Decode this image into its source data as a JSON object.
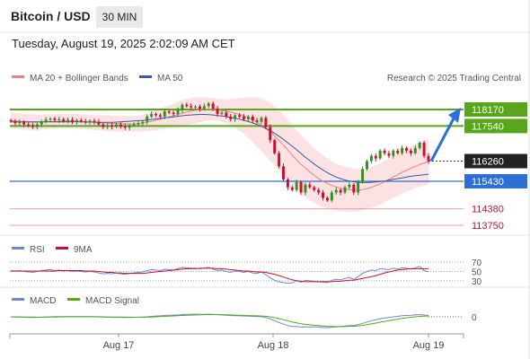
{
  "header": {
    "title": "Bitcoin / USD",
    "timeframe": "30 MIN",
    "datetime": "Tuesday, August 19, 2025 2:02:09 AM CET"
  },
  "legend": {
    "ma20": "MA 20 + Bollinger Bands",
    "ma50": "MA 50",
    "credit": "Research © 2025 Trading Central"
  },
  "colors": {
    "bull": "#2f8f1f",
    "bear": "#c8102e",
    "ma20": "#f08080",
    "ma50": "#3d5a99",
    "band": "#fbd3d3",
    "resistance": "#58a61c",
    "support": "#2d6fd6",
    "rsi": "#6f86d6",
    "macd": "#6f86d6",
    "signal": "#58a61c"
  },
  "chart_data": [
    {
      "type": "candlestick",
      "title": "",
      "ylim": [
        113300,
        118750
      ],
      "xticks": [
        "Aug 17",
        "Aug 18",
        "Aug 19"
      ],
      "current_price": "116260",
      "levels": [
        {
          "value": 118170,
          "label": "118170",
          "kind": "resistance"
        },
        {
          "value": 117540,
          "label": "117540",
          "kind": "resistance"
        },
        {
          "value": 115430,
          "label": "115430",
          "kind": "support"
        },
        {
          "value": 114380,
          "label": "114380",
          "kind": "minor"
        },
        {
          "value": 113750,
          "label": "113750",
          "kind": "minor"
        }
      ],
      "closes": [
        117720,
        117650,
        117700,
        117600,
        117550,
        117500,
        117600,
        117700,
        117780,
        117820,
        117760,
        117800,
        117720,
        117780,
        117700,
        117760,
        117720,
        117680,
        117740,
        117700,
        117600,
        117500,
        117560,
        117520,
        117600,
        117520,
        117480,
        117560,
        117600,
        117650,
        117700,
        117900,
        118000,
        117950,
        117900,
        118100,
        118050,
        118000,
        118150,
        118350,
        118300,
        118250,
        118280,
        118200,
        118300,
        118400,
        118200,
        118000,
        118050,
        117900,
        117800,
        117950,
        117900,
        117800,
        117900,
        117750,
        117700,
        117850,
        117500,
        117000,
        116500,
        116000,
        115500,
        115200,
        115100,
        115400,
        115000,
        115300,
        115200,
        115100,
        115000,
        114800,
        114700,
        115000,
        115100,
        115000,
        115200,
        115300,
        115000,
        115400,
        115900,
        116200,
        116400,
        116300,
        116600,
        116500,
        116400,
        116600,
        116500,
        116700,
        116600,
        116500,
        116700,
        116900,
        116400,
        116200
      ],
      "ma20": [
        117750,
        117740,
        117720,
        117700,
        117690,
        117680,
        117680,
        117690,
        117700,
        117710,
        117710,
        117720,
        117720,
        117720,
        117720,
        117720,
        117710,
        117700,
        117690,
        117680,
        117670,
        117660,
        117650,
        117640,
        117640,
        117630,
        117630,
        117620,
        117620,
        117630,
        117650,
        117680,
        117720,
        117760,
        117800,
        117850,
        117890,
        117930,
        117980,
        118030,
        118070,
        118110,
        118140,
        118160,
        118180,
        118190,
        118180,
        118160,
        118130,
        118100,
        118070,
        118030,
        117980,
        117930,
        117860,
        117780,
        117690,
        117580,
        117460,
        117320,
        117160,
        116990,
        116810,
        116620,
        116430,
        116250,
        116080,
        115930,
        115790,
        115660,
        115540,
        115430,
        115350,
        115270,
        115210,
        115160,
        115130,
        115110,
        115090,
        115090,
        115110,
        115150,
        115200,
        115260,
        115330,
        115410,
        115500,
        115590,
        115680,
        115770,
        115850,
        115930,
        116000,
        116070,
        116130,
        116180
      ],
      "ma50": [
        117700,
        117700,
        117700,
        117700,
        117700,
        117700,
        117700,
        117700,
        117700,
        117700,
        117700,
        117700,
        117700,
        117700,
        117700,
        117700,
        117700,
        117690,
        117690,
        117690,
        117680,
        117680,
        117680,
        117680,
        117690,
        117700,
        117710,
        117720,
        117730,
        117740,
        117750,
        117770,
        117790,
        117810,
        117830,
        117850,
        117870,
        117890,
        117910,
        117930,
        117950,
        117960,
        117970,
        117980,
        117980,
        117970,
        117960,
        117940,
        117920,
        117900,
        117870,
        117840,
        117800,
        117760,
        117710,
        117660,
        117600,
        117530,
        117450,
        117360,
        117260,
        117150,
        117030,
        116900,
        116770,
        116630,
        116490,
        116350,
        116220,
        116090,
        115970,
        115860,
        115760,
        115670,
        115590,
        115530,
        115480,
        115440,
        115410,
        115390,
        115380,
        115380,
        115390,
        115400,
        115420,
        115440,
        115470,
        115500,
        115530,
        115560,
        115590,
        115620,
        115640,
        115660,
        115680,
        115700
      ],
      "band_width": [
        300,
        300,
        300,
        300,
        300,
        300,
        300,
        280,
        280,
        280,
        280,
        280,
        280,
        280,
        280,
        280,
        280,
        280,
        280,
        280,
        290,
        300,
        300,
        300,
        300,
        300,
        300,
        300,
        300,
        300,
        320,
        340,
        360,
        380,
        400,
        420,
        440,
        460,
        480,
        500,
        500,
        500,
        500,
        480,
        460,
        440,
        430,
        420,
        430,
        460,
        500,
        560,
        620,
        700,
        780,
        860,
        940,
        1000,
        1060,
        1100,
        1130,
        1150,
        1160,
        1160,
        1150,
        1140,
        1120,
        1100,
        1080,
        1050,
        1020,
        990,
        960,
        930,
        900,
        880,
        860,
        840,
        820,
        800,
        790,
        780,
        780,
        780,
        780,
        780,
        780,
        790,
        800,
        810,
        820,
        830,
        840,
        850,
        860,
        860
      ]
    },
    {
      "type": "line",
      "title": "",
      "legend": [
        "RSI",
        "9MA"
      ],
      "ticks": [
        "70",
        "50",
        "30"
      ],
      "ylim": [
        20,
        80
      ],
      "series": [
        {
          "name": "RSI",
          "values": [
            52,
            51,
            52,
            50,
            49,
            48,
            50,
            52,
            53,
            54,
            52,
            53,
            51,
            52,
            50,
            51,
            50,
            49,
            50,
            49,
            47,
            45,
            46,
            45,
            47,
            45,
            44,
            46,
            47,
            48,
            49,
            52,
            54,
            53,
            52,
            55,
            54,
            53,
            56,
            59,
            58,
            57,
            57,
            56,
            57,
            59,
            55,
            52,
            53,
            50,
            48,
            51,
            50,
            48,
            50,
            47,
            46,
            49,
            43,
            36,
            31,
            28,
            26,
            25,
            25,
            30,
            27,
            31,
            30,
            29,
            28,
            27,
            26,
            31,
            33,
            32,
            35,
            37,
            33,
            39,
            46,
            50,
            53,
            52,
            56,
            55,
            54,
            57,
            55,
            58,
            57,
            55,
            58,
            61,
            52,
            49
          ]
        },
        {
          "name": "9MA",
          "values": [
            51,
            51,
            51,
            51,
            51,
            51,
            51,
            51,
            51,
            51,
            51,
            52,
            52,
            52,
            52,
            52,
            52,
            51,
            51,
            51,
            50,
            49,
            48,
            48,
            47,
            47,
            46,
            46,
            46,
            46,
            46,
            47,
            48,
            49,
            50,
            51,
            52,
            53,
            54,
            55,
            56,
            56,
            56,
            57,
            57,
            57,
            57,
            56,
            56,
            55,
            54,
            53,
            52,
            51,
            51,
            50,
            49,
            49,
            48,
            46,
            44,
            41,
            38,
            35,
            32,
            30,
            29,
            28,
            28,
            28,
            28,
            28,
            28,
            28,
            29,
            29,
            30,
            31,
            31,
            33,
            35,
            37,
            39,
            41,
            44,
            47,
            49,
            51,
            53,
            54,
            55,
            56,
            56,
            56,
            56,
            56
          ]
        }
      ]
    },
    {
      "type": "line",
      "title": "",
      "legend": [
        "MACD",
        "MACD Signal"
      ],
      "ticks": [
        "0"
      ],
      "ylim": [
        -700,
        450
      ],
      "series": [
        {
          "name": "MACD",
          "values": [
            0,
            -10,
            -15,
            -20,
            -25,
            -30,
            -28,
            -20,
            -10,
            0,
            5,
            10,
            10,
            12,
            8,
            10,
            8,
            5,
            5,
            2,
            -5,
            -15,
            -20,
            -25,
            -25,
            -28,
            -30,
            -28,
            -25,
            -20,
            -15,
            0,
            20,
            35,
            45,
            60,
            70,
            75,
            85,
            100,
            110,
            115,
            118,
            115,
            115,
            118,
            110,
            95,
            85,
            70,
            55,
            50,
            45,
            35,
            30,
            20,
            10,
            5,
            -30,
            -100,
            -180,
            -260,
            -340,
            -400,
            -440,
            -440,
            -470,
            -460,
            -460,
            -460,
            -470,
            -490,
            -500,
            -480,
            -460,
            -450,
            -420,
            -400,
            -400,
            -360,
            -300,
            -240,
            -180,
            -140,
            -90,
            -60,
            -30,
            0,
            20,
            50,
            60,
            70,
            85,
            100,
            80,
            60
          ]
        },
        {
          "name": "MACD Signal",
          "values": [
            0,
            -2,
            -5,
            -8,
            -11,
            -15,
            -17,
            -18,
            -16,
            -13,
            -9,
            -5,
            -2,
            1,
            2,
            3,
            4,
            4,
            4,
            4,
            2,
            -1,
            -5,
            -9,
            -12,
            -15,
            -18,
            -20,
            -21,
            -21,
            -20,
            -16,
            -9,
            0,
            9,
            19,
            29,
            38,
            47,
            58,
            68,
            77,
            85,
            91,
            96,
            100,
            102,
            101,
            98,
            93,
            85,
            78,
            71,
            64,
            57,
            50,
            42,
            35,
            22,
            -2,
            -38,
            -83,
            -134,
            -187,
            -237,
            -278,
            -316,
            -345,
            -368,
            -387,
            -403,
            -420,
            -436,
            -445,
            -449,
            -451,
            -447,
            -439,
            -431,
            -417,
            -393,
            -363,
            -326,
            -289,
            -249,
            -211,
            -175,
            -140,
            -108,
            -76,
            -48,
            -24,
            -2,
            18,
            30,
            36
          ]
        }
      ]
    }
  ]
}
